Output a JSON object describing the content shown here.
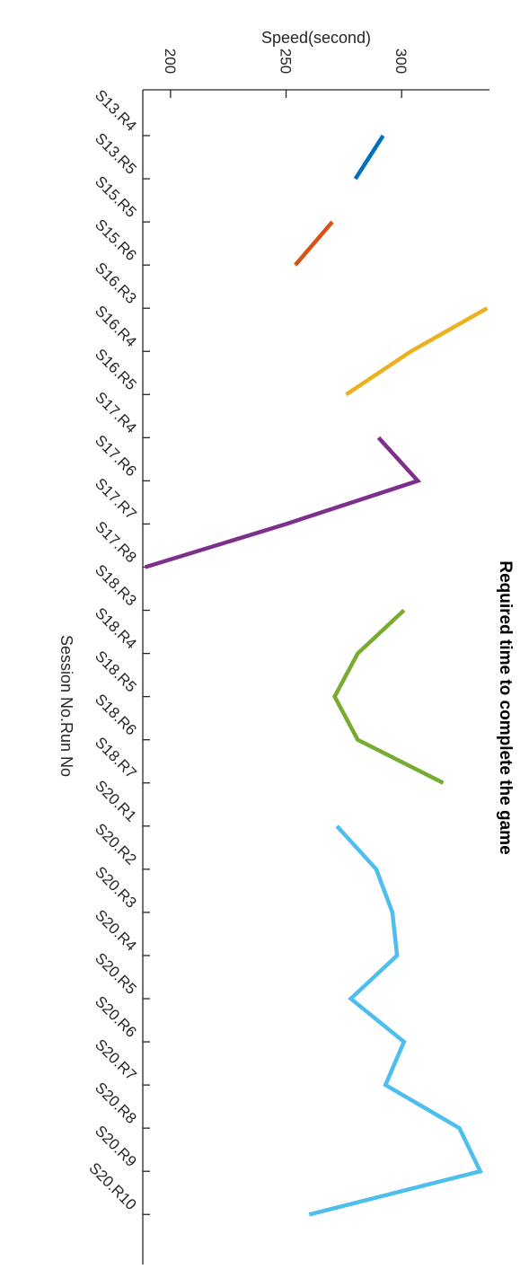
{
  "chart_data": {
    "type": "line",
    "title": "Required time to complete the game",
    "xlabel": "Session No.Run No",
    "ylabel": "Speed(second)",
    "ylim": [
      188,
      338
    ],
    "y_ticks": [
      200,
      250,
      300
    ],
    "grid": false,
    "orientation": "rotated 90 degrees clockwise (categories run down the page, speed increases to the right)",
    "categories": [
      "S13.R4",
      "S13.R5",
      "S15.R5",
      "S15.R6",
      "S16.R3",
      "S16.R4",
      "S16.R5",
      "S17.R4",
      "S17.R6",
      "S17.R7",
      "S17.R8",
      "S18.R3",
      "S18.R4",
      "S18.R5",
      "S18.R6",
      "S18.R7",
      "S20.R1",
      "S20.R2",
      "S20.R3",
      "S20.R4",
      "S20.R5",
      "S20.R6",
      "S20.R7",
      "S20.R8",
      "S20.R9",
      "S20.R10"
    ],
    "series": [
      {
        "color": "#0072BD",
        "values": [
          292,
          280,
          null,
          null,
          null,
          null,
          null,
          null,
          null,
          null,
          null,
          null,
          null,
          null,
          null,
          null,
          null,
          null,
          null,
          null,
          null,
          null,
          null,
          null,
          null,
          null
        ]
      },
      {
        "color": "#D95319",
        "values": [
          null,
          null,
          270,
          254,
          null,
          null,
          null,
          null,
          null,
          null,
          null,
          null,
          null,
          null,
          null,
          null,
          null,
          null,
          null,
          null,
          null,
          null,
          null,
          null,
          null,
          null
        ]
      },
      {
        "color": "#EDB120",
        "values": [
          null,
          null,
          null,
          null,
          337,
          304,
          276,
          null,
          null,
          null,
          null,
          null,
          null,
          null,
          null,
          null,
          null,
          null,
          null,
          null,
          null,
          null,
          null,
          null,
          null,
          null
        ]
      },
      {
        "color": "#7E2F8E",
        "values": [
          null,
          null,
          null,
          null,
          null,
          null,
          null,
          290,
          307,
          250,
          189,
          null,
          null,
          null,
          null,
          null,
          null,
          null,
          null,
          null,
          null,
          null,
          null,
          null,
          null,
          null
        ]
      },
      {
        "color": "#77AC30",
        "values": [
          null,
          null,
          null,
          null,
          null,
          null,
          null,
          null,
          null,
          null,
          null,
          301,
          281,
          271,
          281,
          318,
          null,
          null,
          null,
          null,
          null,
          null,
          null,
          null,
          null,
          null
        ]
      },
      {
        "color": "#4DBEEE",
        "values": [
          null,
          null,
          null,
          null,
          null,
          null,
          null,
          null,
          null,
          null,
          null,
          null,
          null,
          null,
          null,
          null,
          272,
          289,
          296,
          298,
          278,
          301,
          293,
          325,
          334,
          260
        ]
      }
    ]
  }
}
